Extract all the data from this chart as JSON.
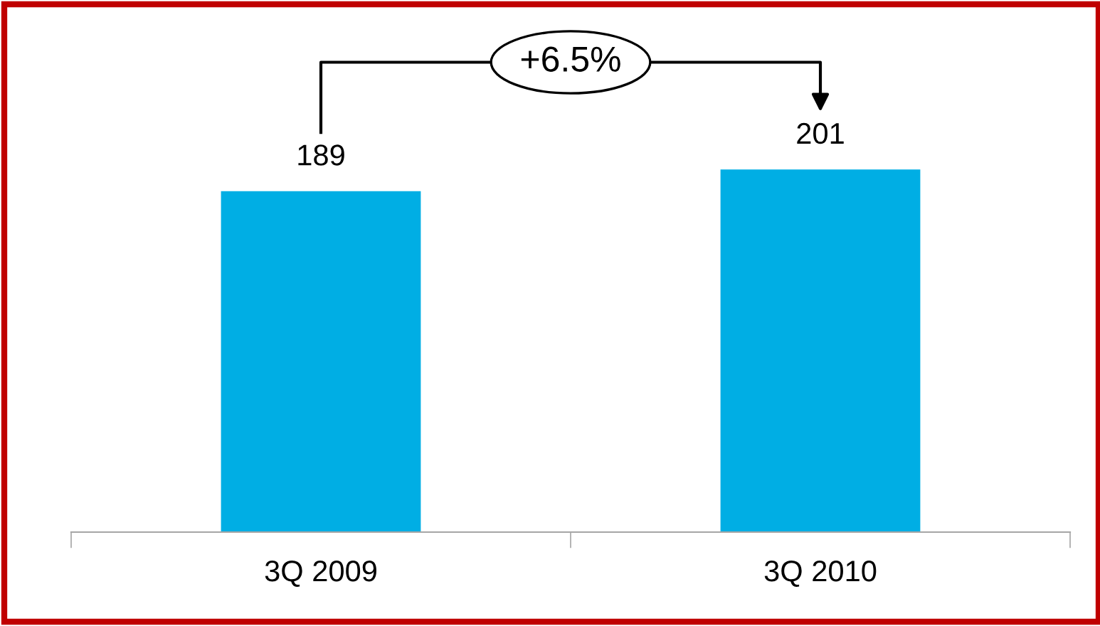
{
  "chart_data": {
    "type": "bar",
    "categories": [
      "3Q 2009",
      "3Q 2010"
    ],
    "values": [
      189,
      201
    ],
    "color": "#00aee4",
    "tick_labels": "x",
    "data_labels": true,
    "grid": false,
    "annotations": [
      "+6.5%"
    ]
  }
}
